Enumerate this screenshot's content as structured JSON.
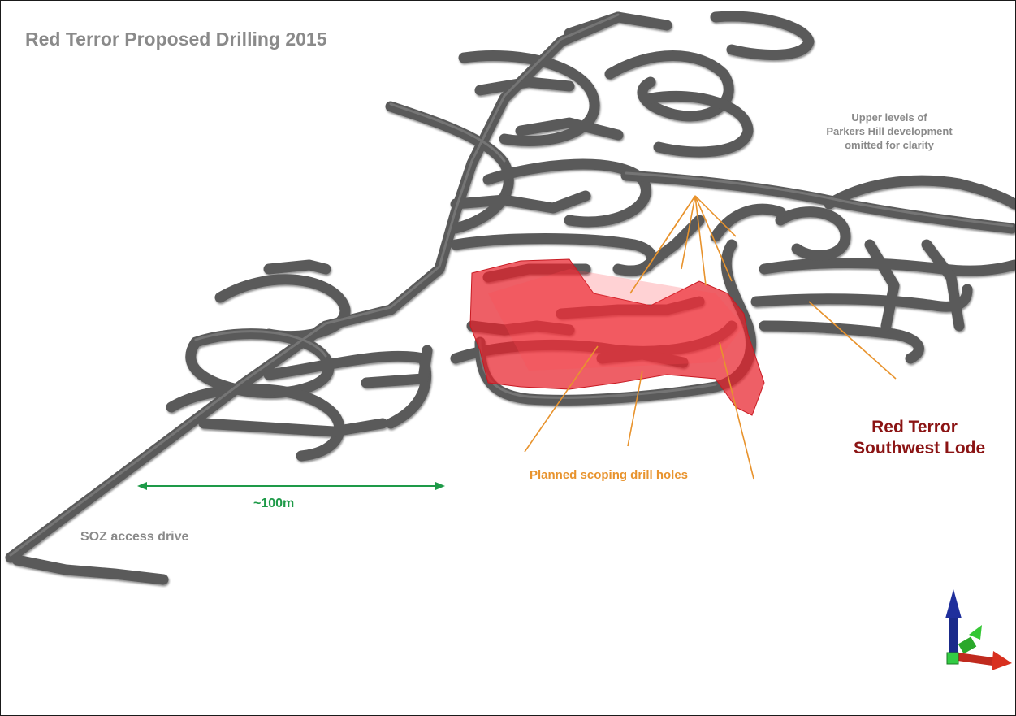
{
  "title": "Red Terror Proposed Drilling 2015",
  "labels": {
    "upper_levels_note": "Upper levels of\nParkers Hill development\nomitted for clarity",
    "lode_line1": "Red Terror",
    "lode_line2": "Southwest Lode",
    "drill_holes": "Planned scoping drill holes",
    "scale_bar": "~100m",
    "access_drive": "SOZ access drive"
  },
  "colors": {
    "tunnels": "#5a5a5a",
    "tunnel_highlight": "#8c8c8c",
    "ore_body": "#e8212b",
    "drill_holes": "#e8932d",
    "scale_bar": "#1e9a48",
    "title_text": "#8a8a8a",
    "lode_text": "#8b1414"
  },
  "axis_triad": {
    "z_axis": "blue-arrow",
    "y_axis": "green-arrow",
    "x_axis": "red-arrow"
  }
}
